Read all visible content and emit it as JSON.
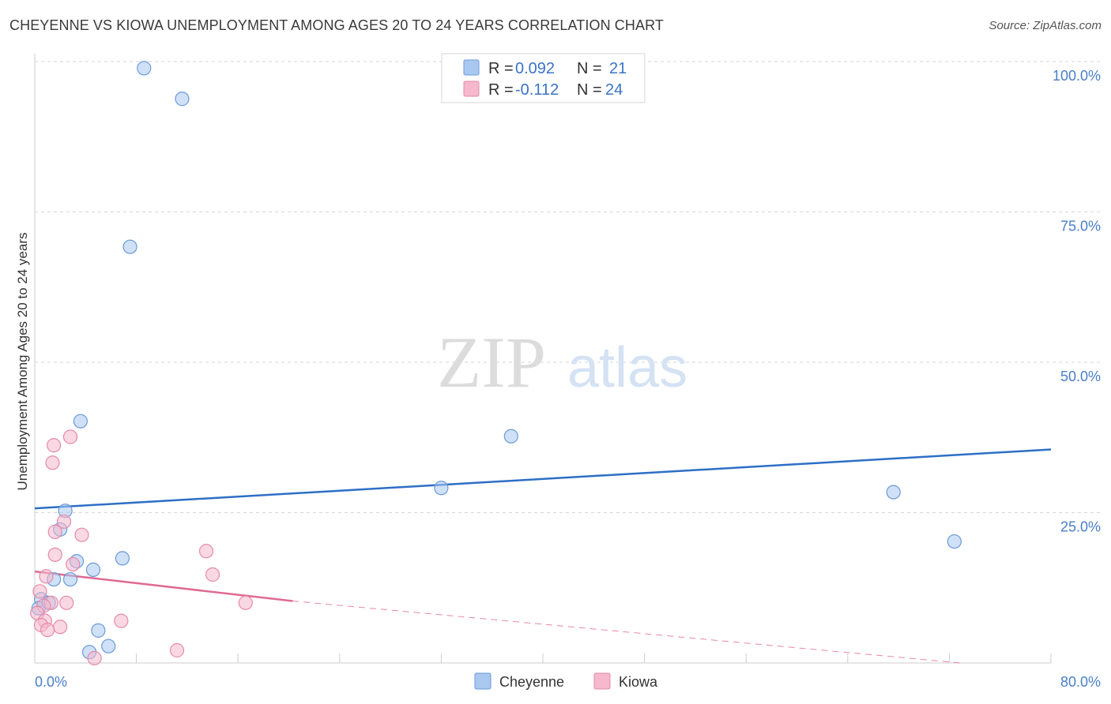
{
  "header": {
    "title": "CHEYENNE VS KIOWA UNEMPLOYMENT AMONG AGES 20 TO 24 YEARS CORRELATION CHART",
    "source": "Source: ZipAtlas.com"
  },
  "watermark": {
    "zip": "ZIP",
    "atlas": "atlas"
  },
  "colors": {
    "cheyenne_fill": "#a9c8f0",
    "cheyenne_stroke": "#6a9ad8",
    "cheyenne_line": "#2d6fc6",
    "kiowa_fill": "#f5b8cc",
    "kiowa_stroke": "#e58aaa",
    "kiowa_line": "#e06a93",
    "tick_text": "#4a7fc8",
    "grid": "#d6d6d6"
  },
  "chart_data": {
    "type": "scatter",
    "title": "CHEYENNE VS KIOWA UNEMPLOYMENT AMONG AGES 20 TO 24 YEARS CORRELATION CHART",
    "xlabel": "",
    "ylabel": "Unemployment Among Ages 20 to 24 years",
    "xlim": [
      0,
      80
    ],
    "ylim": [
      0,
      100
    ],
    "x_tick_labels": [
      "0.0%",
      "80.0%"
    ],
    "y_tick_values": [
      25,
      50,
      75,
      100
    ],
    "y_tick_labels": [
      "25.0%",
      "50.0%",
      "75.0%",
      "100.0%"
    ],
    "legend": {
      "r_label": "R = ",
      "n_label": "N = ",
      "entries": [
        {
          "name": "Cheyenne",
          "r": "0.092",
          "n": "21"
        },
        {
          "name": "Kiowa",
          "r": "-0.112",
          "n": "24"
        }
      ]
    },
    "series": [
      {
        "name": "Cheyenne",
        "points": [
          [
            8.6,
            98.9
          ],
          [
            11.6,
            93.8
          ],
          [
            7.5,
            69.2
          ],
          [
            3.6,
            40.2
          ],
          [
            32.0,
            29.1
          ],
          [
            37.5,
            37.7
          ],
          [
            67.6,
            28.4
          ],
          [
            72.4,
            20.2
          ],
          [
            2.4,
            25.3
          ],
          [
            2.0,
            22.2
          ],
          [
            3.3,
            16.9
          ],
          [
            4.6,
            15.5
          ],
          [
            6.9,
            17.4
          ],
          [
            1.5,
            13.9
          ],
          [
            2.8,
            13.9
          ],
          [
            0.5,
            10.6
          ],
          [
            0.3,
            9.1
          ],
          [
            1.1,
            10.0
          ],
          [
            5.0,
            5.4
          ],
          [
            4.3,
            1.8
          ],
          [
            5.8,
            2.8
          ]
        ],
        "trend": {
          "x0": 0,
          "y0": 25.7,
          "x1": 80,
          "y1": 35.5
        }
      },
      {
        "name": "Kiowa",
        "points": [
          [
            1.5,
            36.2
          ],
          [
            2.8,
            37.6
          ],
          [
            1.4,
            33.3
          ],
          [
            2.3,
            23.5
          ],
          [
            1.6,
            21.8
          ],
          [
            3.7,
            21.3
          ],
          [
            1.6,
            18.0
          ],
          [
            13.5,
            18.6
          ],
          [
            3.0,
            16.4
          ],
          [
            14.0,
            14.7
          ],
          [
            0.9,
            14.4
          ],
          [
            0.4,
            11.9
          ],
          [
            1.3,
            10.0
          ],
          [
            2.5,
            10.0
          ],
          [
            16.6,
            10.0
          ],
          [
            0.7,
            9.5
          ],
          [
            0.2,
            8.3
          ],
          [
            0.8,
            7.0
          ],
          [
            0.5,
            6.3
          ],
          [
            2.0,
            6.0
          ],
          [
            1.0,
            5.5
          ],
          [
            6.8,
            7.0
          ],
          [
            11.2,
            2.1
          ],
          [
            4.7,
            0.8
          ]
        ],
        "trend": {
          "x0": 0,
          "y0": 15.2,
          "x1": 20.3,
          "y1": 10.3,
          "dash_x1": 80,
          "dash_y1": -1.4
        }
      }
    ]
  }
}
